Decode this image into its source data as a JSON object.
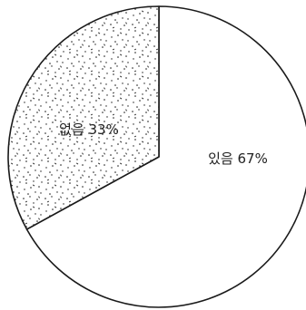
{
  "chart_data": {
    "type": "pie",
    "title": "",
    "slices": [
      {
        "label": "있음",
        "value": 67,
        "display": "있음 67%",
        "fill": "#ffffff",
        "pattern": "none"
      },
      {
        "label": "없음",
        "value": 33,
        "display": "없음 33%",
        "fill": "#ffffff",
        "pattern": "stipple"
      }
    ],
    "start_angle_deg": 0,
    "direction": "counterclockwise",
    "colors": {
      "stroke": "#1a1a1a",
      "dots": "#1a1a1a"
    }
  }
}
